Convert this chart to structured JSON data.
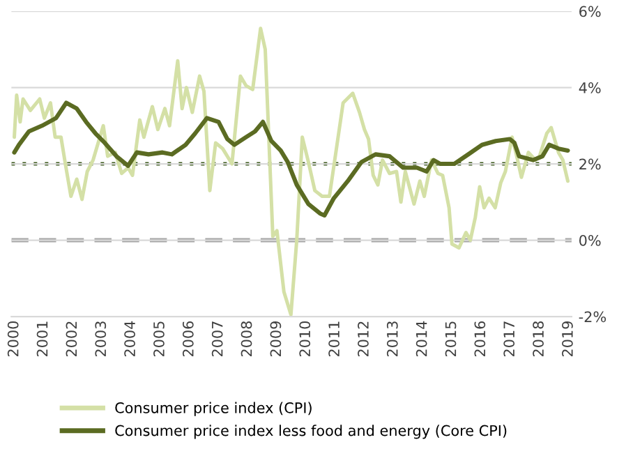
{
  "chart_data": {
    "type": "line",
    "series": [
      {
        "name": "Consumer price index (CPI)",
        "color": "#d4e0a6",
        "x": [
          2000.0,
          2000.08,
          2000.2,
          2000.3,
          2000.55,
          2000.87,
          2001.03,
          2001.24,
          2001.4,
          2001.6,
          2001.75,
          2001.94,
          2002.14,
          2002.32,
          2002.5,
          2002.7,
          2003.05,
          2003.2,
          2003.46,
          2003.68,
          2003.9,
          2004.05,
          2004.3,
          2004.44,
          2004.73,
          2004.92,
          2005.16,
          2005.32,
          2005.6,
          2005.75,
          2005.9,
          2006.1,
          2006.35,
          2006.5,
          2006.7,
          2006.9,
          2007.14,
          2007.46,
          2007.75,
          2007.94,
          2008.17,
          2008.44,
          2008.6,
          2008.86,
          2009.0,
          2009.24,
          2009.48,
          2009.68,
          2009.87,
          2010.08,
          2010.3,
          2010.55,
          2010.8,
          2011.27,
          2011.6,
          2011.83,
          2012.0,
          2012.14,
          2012.3,
          2012.46,
          2012.62,
          2012.86,
          2013.1,
          2013.25,
          2013.4,
          2013.7,
          2013.9,
          2014.05,
          2014.3,
          2014.52,
          2014.68,
          2014.9,
          2015.0,
          2015.24,
          2015.48,
          2015.63,
          2015.8,
          2015.95,
          2016.1,
          2016.27,
          2016.48,
          2016.67,
          2016.83,
          2017.06,
          2017.22,
          2017.38,
          2017.62,
          2017.86,
          2018.0,
          2018.25,
          2018.4,
          2018.65,
          2018.8,
          2018.97
        ],
        "values": [
          2.7,
          3.8,
          3.1,
          3.7,
          3.4,
          3.7,
          3.2,
          3.6,
          2.7,
          2.7,
          2.0,
          1.15,
          1.6,
          1.07,
          1.8,
          2.1,
          3.0,
          2.2,
          2.3,
          1.75,
          1.9,
          1.7,
          3.15,
          2.7,
          3.5,
          2.9,
          3.45,
          3.0,
          4.7,
          3.45,
          4.0,
          3.35,
          4.3,
          3.9,
          1.3,
          2.55,
          2.4,
          2.0,
          4.3,
          4.05,
          3.95,
          5.55,
          5.0,
          0.1,
          0.25,
          -1.35,
          -1.95,
          0.0,
          2.7,
          2.05,
          1.3,
          1.15,
          1.15,
          3.6,
          3.85,
          3.35,
          2.9,
          2.65,
          1.7,
          1.45,
          2.1,
          1.75,
          1.8,
          1.0,
          1.8,
          0.95,
          1.55,
          1.15,
          2.1,
          1.75,
          1.7,
          0.85,
          -0.1,
          -0.2,
          0.2,
          0.0,
          0.6,
          1.4,
          0.85,
          1.1,
          0.85,
          1.5,
          1.8,
          2.7,
          2.2,
          1.65,
          2.3,
          2.1,
          2.2,
          2.8,
          2.95,
          2.3,
          2.1,
          1.55
        ]
      },
      {
        "name": "Consumer price index less food and energy (Core CPI)",
        "color": "#5b6b22",
        "x": [
          2000.0,
          2000.16,
          2000.5,
          2000.95,
          2001.43,
          2001.78,
          2002.14,
          2002.46,
          2002.78,
          2003.1,
          2003.5,
          2003.9,
          2004.2,
          2004.6,
          2005.08,
          2005.4,
          2005.87,
          2006.2,
          2006.6,
          2007.0,
          2007.3,
          2007.54,
          2007.94,
          2008.25,
          2008.52,
          2008.81,
          2009.13,
          2009.37,
          2009.68,
          2010.08,
          2010.48,
          2010.63,
          2010.95,
          2011.43,
          2011.9,
          2012.38,
          2012.86,
          2013.33,
          2013.8,
          2014.13,
          2014.37,
          2014.6,
          2015.08,
          2015.56,
          2016.03,
          2016.5,
          2016.98,
          2017.14,
          2017.3,
          2017.78,
          2018.1,
          2018.33,
          2018.65,
          2018.97
        ],
        "values": [
          2.3,
          2.5,
          2.85,
          3.0,
          3.2,
          3.6,
          3.45,
          3.1,
          2.8,
          2.55,
          2.2,
          1.95,
          2.3,
          2.25,
          2.3,
          2.25,
          2.5,
          2.8,
          3.2,
          3.1,
          2.65,
          2.5,
          2.7,
          2.85,
          3.1,
          2.6,
          2.35,
          2.05,
          1.45,
          0.95,
          0.7,
          0.65,
          1.1,
          1.55,
          2.05,
          2.25,
          2.2,
          1.9,
          1.9,
          1.8,
          2.1,
          2.0,
          2.0,
          2.25,
          2.5,
          2.6,
          2.65,
          2.55,
          2.2,
          2.1,
          2.2,
          2.5,
          2.4,
          2.35
        ]
      }
    ],
    "xlim": [
      1999.9,
      2019.1
    ],
    "xticks": [
      2000,
      2001,
      2002,
      2003,
      2004,
      2005,
      2006,
      2007,
      2008,
      2009,
      2010,
      2011,
      2012,
      2013,
      2014,
      2015,
      2016,
      2017,
      2018,
      2019
    ],
    "ylim": [
      -2,
      6
    ],
    "yticks": [
      {
        "value": -2,
        "label": "-2%"
      },
      {
        "value": 0,
        "label": "0%"
      },
      {
        "value": 2,
        "label": "2%"
      },
      {
        "value": 4,
        "label": "4%"
      },
      {
        "value": 6,
        "label": "6%"
      }
    ],
    "ref_lines": [
      {
        "axis": "y",
        "value": 2,
        "label": null,
        "color": "#3d5a1e",
        "line_style": "dotted"
      },
      {
        "axis": "y",
        "value": 0,
        "label": null,
        "color": "#a6a6a6",
        "line_style": "dashed"
      }
    ],
    "grid": "y",
    "legend": "bottom",
    "marker": "none",
    "line_style": "solid"
  }
}
